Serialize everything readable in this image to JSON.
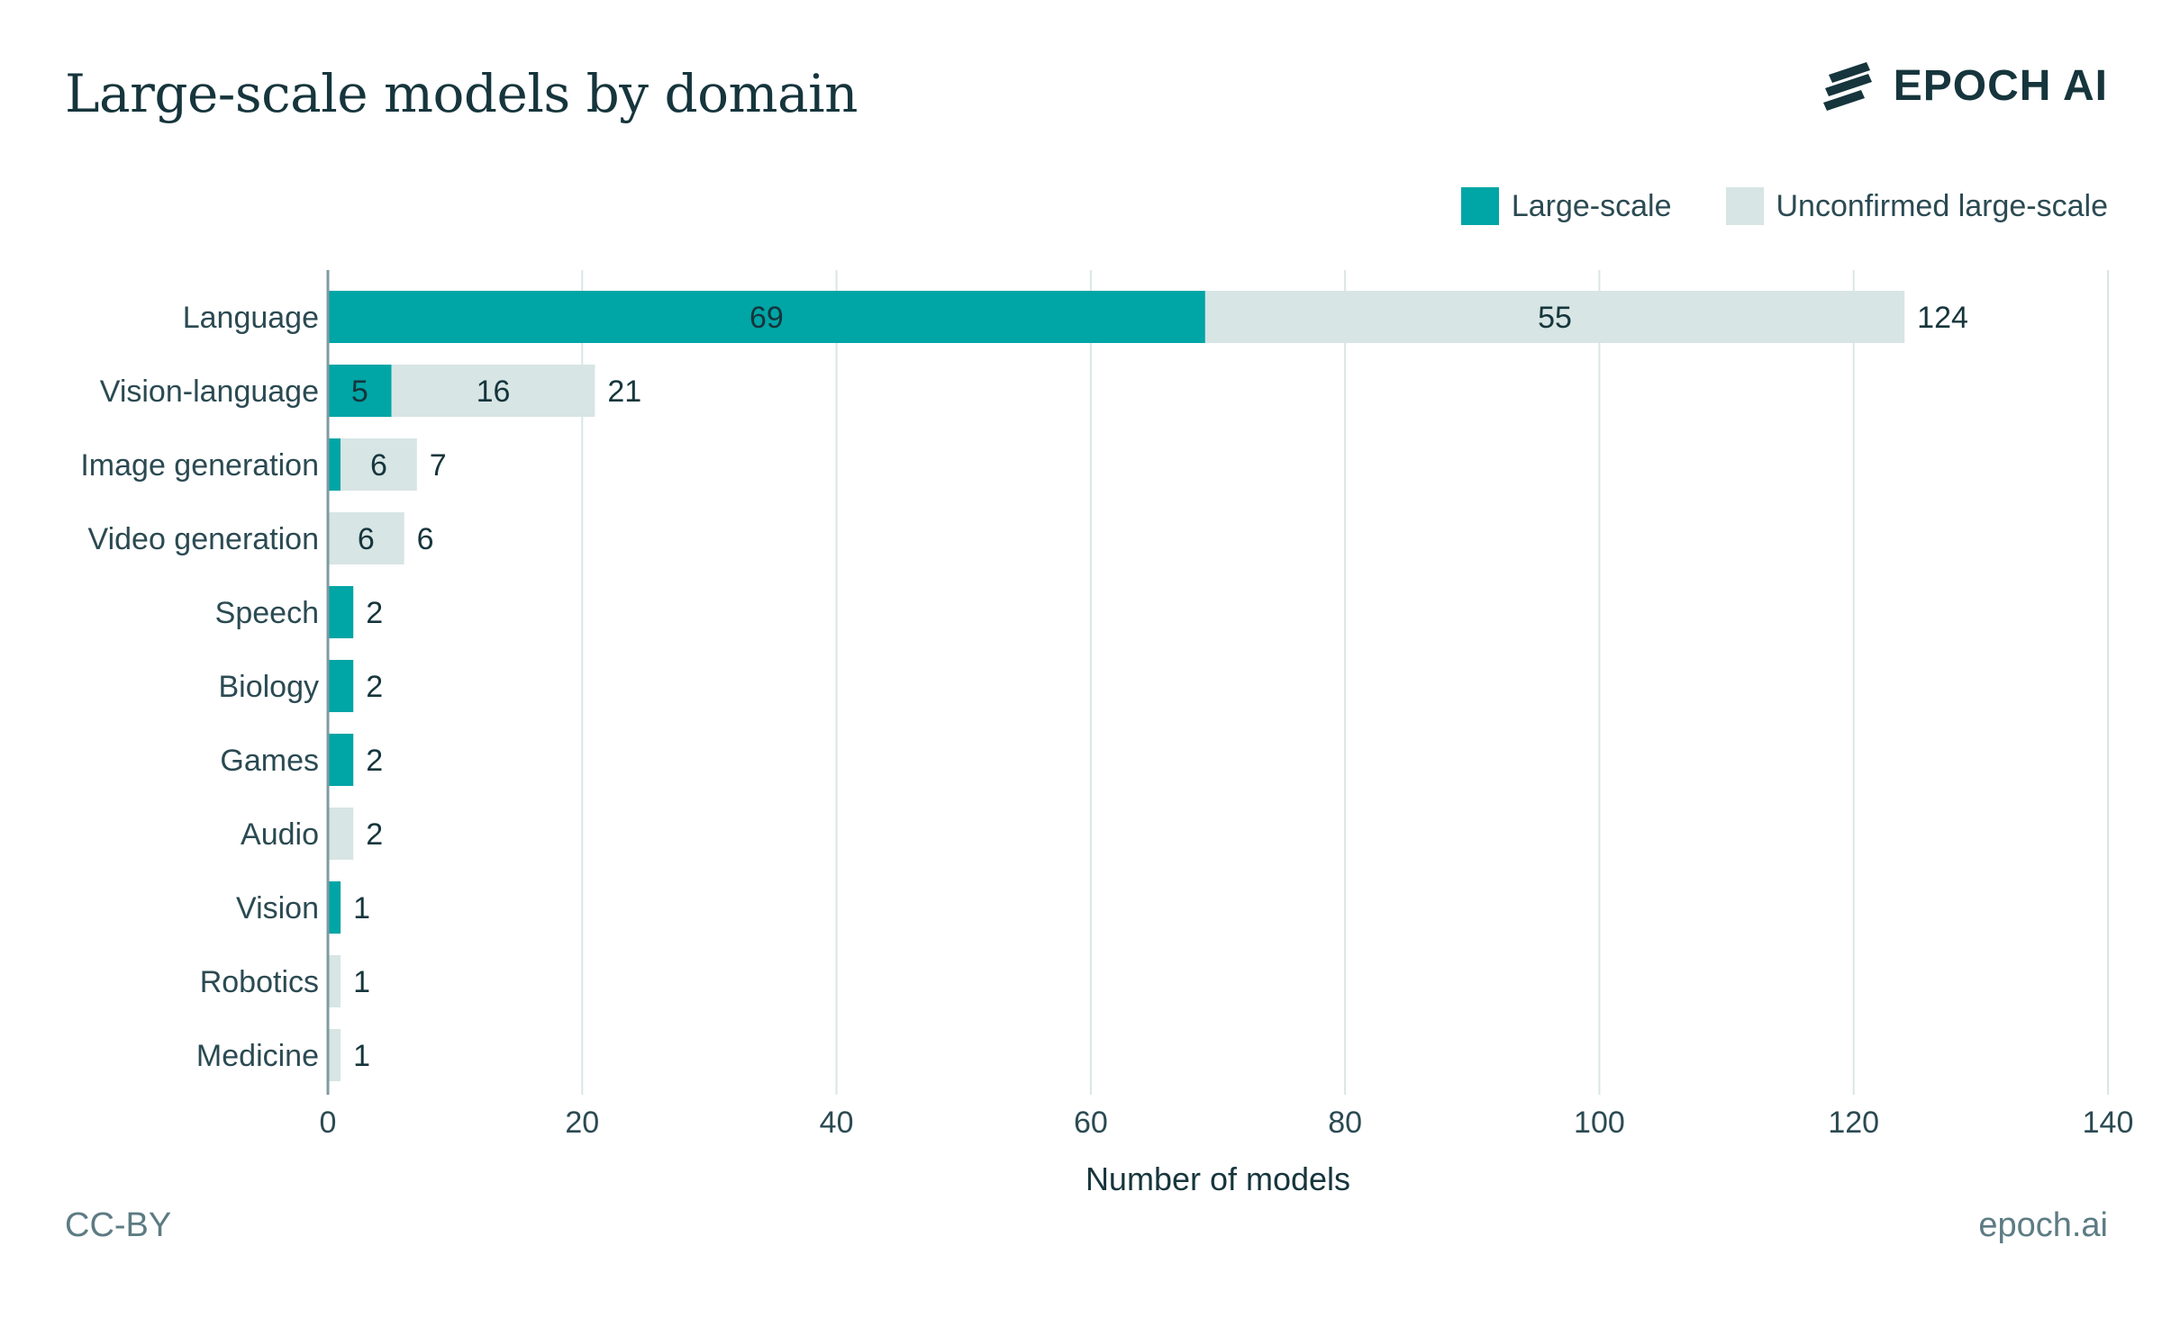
{
  "title": "Large-scale models by domain",
  "logo": {
    "text": "EPOCH AI",
    "icon": "epoch-stripes-icon"
  },
  "legend": {
    "large_scale": "Large-scale",
    "unconfirmed": "Unconfirmed large-scale"
  },
  "colors": {
    "large_scale": "#00a5a6",
    "unconfirmed": "#d7e5e4",
    "gridline": "#d9e6e6",
    "text": "#16353c"
  },
  "footer": {
    "license": "CC-BY",
    "site": "epoch.ai"
  },
  "chart_data": {
    "type": "bar",
    "orientation": "horizontal",
    "stacked": true,
    "title": "Large-scale models by domain",
    "xlabel": "Number of models",
    "ylabel": "",
    "xlim": [
      0,
      140
    ],
    "xticks": [
      0,
      20,
      40,
      60,
      80,
      100,
      120,
      140
    ],
    "grid": true,
    "legend_position": "top-right",
    "categories": [
      "Language",
      "Vision-language",
      "Image generation",
      "Video generation",
      "Speech",
      "Biology",
      "Games",
      "Audio",
      "Vision",
      "Robotics",
      "Medicine"
    ],
    "series": [
      {
        "name": "Large-scale",
        "values": [
          69,
          5,
          1,
          0,
          2,
          2,
          2,
          0,
          1,
          0,
          0
        ]
      },
      {
        "name": "Unconfirmed large-scale",
        "values": [
          55,
          16,
          6,
          6,
          0,
          0,
          0,
          2,
          0,
          1,
          1
        ]
      }
    ],
    "segment_labels": {
      "Large-scale": [
        "69",
        "5",
        "",
        "",
        "",
        "",
        "",
        "",
        "",
        "",
        ""
      ],
      "Unconfirmed large-scale": [
        "55",
        "16",
        "6",
        "6",
        "",
        "",
        "",
        "",
        "",
        "",
        ""
      ]
    },
    "totals": [
      124,
      21,
      7,
      6,
      2,
      2,
      2,
      2,
      1,
      1,
      1
    ]
  }
}
